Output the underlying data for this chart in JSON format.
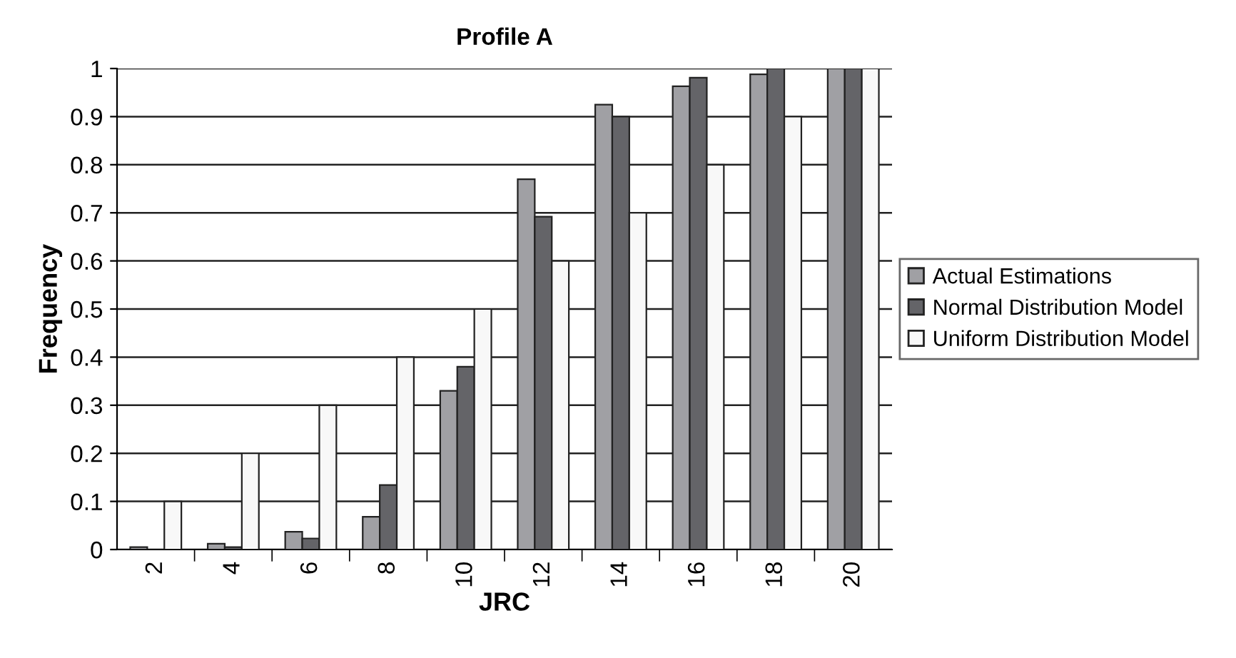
{
  "chart_data": {
    "type": "bar",
    "title": "Profile A",
    "xlabel": "JRC",
    "ylabel": "Frequency",
    "categories": [
      "2",
      "4",
      "6",
      "8",
      "10",
      "12",
      "14",
      "16",
      "18",
      "20"
    ],
    "series": [
      {
        "name": "Actual Estimations",
        "color": "#a0a0a4",
        "values": [
          0.005,
          0.012,
          0.037,
          0.068,
          0.33,
          0.77,
          0.925,
          0.963,
          0.988,
          1.0
        ]
      },
      {
        "name": "Normal Distribution Model",
        "color": "#646468",
        "values": [
          null,
          0.005,
          0.023,
          0.134,
          0.38,
          0.692,
          0.9,
          0.981,
          1.0,
          1.0
        ]
      },
      {
        "name": "Uniform Distribution Model",
        "color": "#f8f8f8",
        "values": [
          0.1,
          0.2,
          0.3,
          0.4,
          0.5,
          0.6,
          0.7,
          0.8,
          0.9,
          1.0
        ]
      }
    ],
    "ylim": [
      0,
      1
    ],
    "yticks": [
      0,
      0.1,
      0.2,
      0.3,
      0.4,
      0.5,
      0.6,
      0.7,
      0.8,
      0.9,
      1
    ],
    "grid": "y",
    "legend": "right"
  }
}
